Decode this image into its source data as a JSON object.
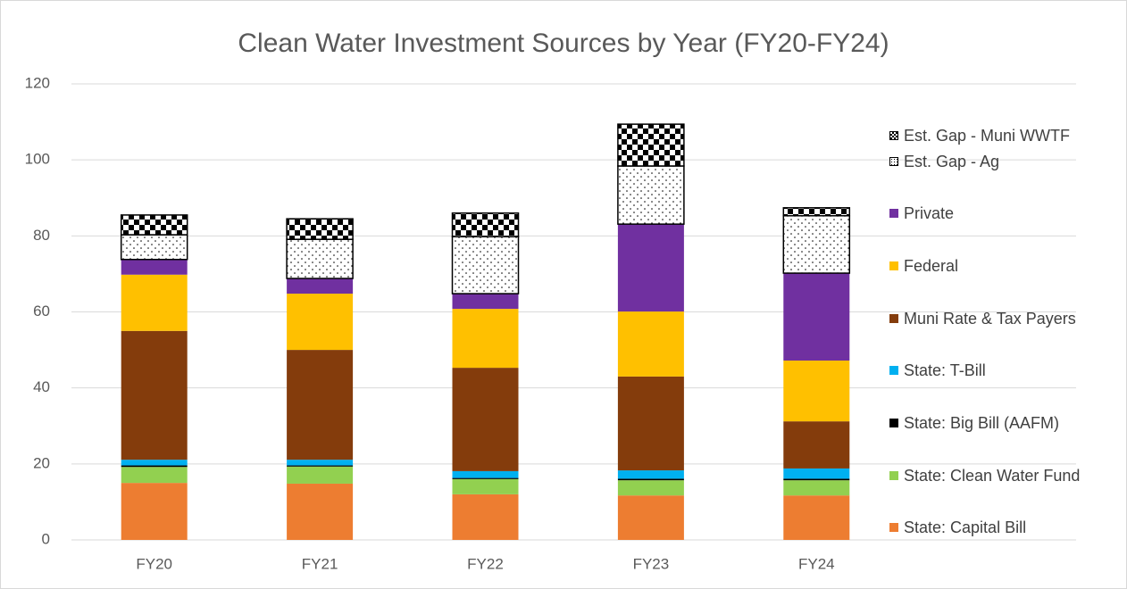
{
  "chart_data": {
    "type": "stacked_bar",
    "title": "Clean Water Investment Sources by Year (FY20-FY24)",
    "categories": [
      "FY20",
      "FY21",
      "FY22",
      "FY23",
      "FY24"
    ],
    "ylim": [
      0,
      120
    ],
    "yticks": [
      0,
      20,
      40,
      60,
      80,
      100,
      120
    ],
    "grid": true,
    "legend": "right",
    "series": [
      {
        "name": "State: Capital Bill",
        "color": "#ed7d31",
        "values": [
          15,
          14.8,
          12,
          11.7,
          11.7
        ]
      },
      {
        "name": "State: Clean Water Fund",
        "color": "#92d050",
        "values": [
          4.2,
          4.5,
          4,
          4,
          4
        ]
      },
      {
        "name": "State: Big Bill (AAFM)",
        "color": "#000000",
        "values": [
          0.4,
          0.3,
          0.3,
          0.4,
          0.4
        ]
      },
      {
        "name": "State: T-Bill",
        "color": "#00b0f0",
        "values": [
          1.5,
          1.5,
          1.8,
          2.2,
          2.7
        ]
      },
      {
        "name": "Muni Rate & Tax Payers",
        "color": "#843c0c",
        "values": [
          33.9,
          28.9,
          27.2,
          24.7,
          12.4
        ]
      },
      {
        "name": "Federal",
        "color": "#ffc000",
        "values": [
          14.8,
          14.8,
          15.5,
          17.1,
          16
        ]
      },
      {
        "name": "Private",
        "color": "#7030a0",
        "values": [
          4,
          4,
          4,
          23,
          23
        ]
      },
      {
        "name": "Est. Gap - Ag",
        "color": "#000000",
        "pattern": "dots",
        "values": [
          6.5,
          10.3,
          15,
          15.3,
          15.1
        ]
      },
      {
        "name": "Est. Gap - Muni WWTF",
        "color": "#000000",
        "pattern": "checker",
        "values": [
          5.2,
          5.4,
          6.2,
          11,
          2.1
        ]
      }
    ]
  }
}
